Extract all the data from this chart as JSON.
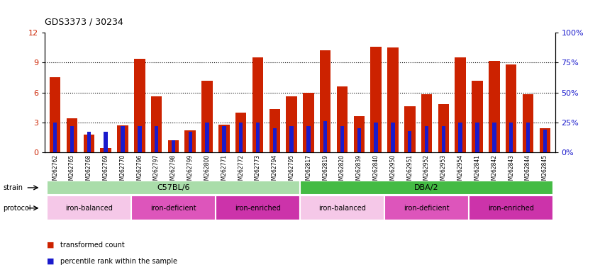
{
  "title": "GDS3373 / 30234",
  "samples": [
    "GSM262762",
    "GSM262765",
    "GSM262768",
    "GSM262769",
    "GSM262770",
    "GSM262796",
    "GSM262797",
    "GSM262798",
    "GSM262799",
    "GSM262800",
    "GSM262771",
    "GSM262772",
    "GSM262773",
    "GSM262794",
    "GSM262795",
    "GSM262817",
    "GSM262819",
    "GSM262820",
    "GSM262839",
    "GSM262840",
    "GSM262950",
    "GSM262951",
    "GSM262952",
    "GSM262953",
    "GSM262954",
    "GSM262841",
    "GSM262842",
    "GSM262843",
    "GSM262844",
    "GSM262845"
  ],
  "red_values": [
    7.5,
    3.4,
    1.8,
    0.4,
    2.7,
    9.4,
    5.6,
    1.2,
    2.2,
    7.2,
    2.8,
    4.0,
    9.5,
    4.3,
    5.6,
    6.0,
    10.2,
    6.6,
    3.6,
    10.6,
    10.5,
    4.6,
    5.8,
    4.8,
    9.5,
    7.2,
    9.2,
    8.8,
    5.8,
    2.4
  ],
  "blue_values_pct": [
    25,
    22,
    17,
    17,
    22,
    22,
    22,
    10,
    17,
    25,
    22,
    25,
    25,
    20,
    22,
    22,
    26,
    22,
    20,
    25,
    25,
    18,
    22,
    22,
    25,
    25,
    25,
    25,
    25,
    19
  ],
  "bar_color": "#cc2200",
  "blue_color": "#1a1acc",
  "strain_c57": {
    "label": "C57BL/6",
    "start": 0,
    "end": 15,
    "color": "#aaddaa"
  },
  "strain_dba": {
    "label": "DBA/2",
    "start": 15,
    "end": 30,
    "color": "#44bb44"
  },
  "protocol_groups": [
    {
      "label": "iron-balanced",
      "start": 0,
      "end": 5,
      "color": "#f0c0e0"
    },
    {
      "label": "iron-deficient",
      "start": 5,
      "end": 10,
      "color": "#dd66cc"
    },
    {
      "label": "iron-enriched",
      "start": 10,
      "end": 15,
      "color": "#bb44aa"
    },
    {
      "label": "iron-balanced",
      "start": 15,
      "end": 20,
      "color": "#f0c0e0"
    },
    {
      "label": "iron-deficient",
      "start": 20,
      "end": 25,
      "color": "#dd66cc"
    },
    {
      "label": "iron-enriched",
      "start": 25,
      "end": 30,
      "color": "#bb44aa"
    }
  ],
  "ylim_left": [
    0,
    12
  ],
  "ylim_right": [
    0,
    100
  ],
  "yticks_left": [
    0,
    3,
    6,
    9,
    12
  ],
  "yticks_right": [
    0,
    25,
    50,
    75,
    100
  ],
  "bar_width": 0.65
}
